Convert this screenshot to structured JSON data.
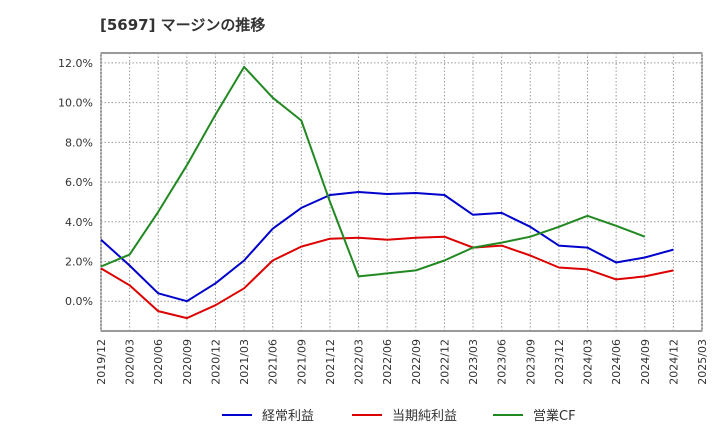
{
  "title": "[5697]  マージンの推移",
  "chart_data": {
    "type": "line",
    "x": [
      "2019/12",
      "2020/03",
      "2020/06",
      "2020/09",
      "2020/12",
      "2021/03",
      "2021/06",
      "2021/09",
      "2021/12",
      "2022/03",
      "2022/06",
      "2022/09",
      "2022/12",
      "2023/03",
      "2023/06",
      "2023/09",
      "2023/12",
      "2024/03",
      "2024/06",
      "2024/09",
      "2024/12",
      "2025/03"
    ],
    "ylim": [
      -1.5,
      12.5
    ],
    "yticks": [
      0,
      2,
      4,
      6,
      8,
      10,
      12
    ],
    "ytick_labels": [
      "0.0%",
      "2.0%",
      "4.0%",
      "6.0%",
      "8.0%",
      "10.0%",
      "12.0%"
    ],
    "grid": true,
    "legend_position": "bottom",
    "series": [
      {
        "name": "経常利益",
        "color": "#0000cc",
        "values": [
          3.1,
          1.8,
          0.4,
          0.0,
          0.9,
          2.05,
          3.65,
          4.7,
          5.35,
          5.5,
          5.4,
          5.45,
          5.35,
          4.35,
          4.45,
          3.75,
          2.8,
          2.7,
          1.95,
          2.2,
          2.6,
          null
        ]
      },
      {
        "name": "当期純利益",
        "color": "#dd0000",
        "values": [
          1.65,
          0.8,
          -0.5,
          -0.85,
          -0.2,
          0.65,
          2.05,
          2.75,
          3.15,
          3.2,
          3.1,
          3.2,
          3.25,
          2.7,
          2.8,
          2.3,
          1.7,
          1.6,
          1.1,
          1.25,
          1.55,
          null
        ]
      },
      {
        "name": "営業CF",
        "color": "#228822",
        "values": [
          1.75,
          2.35,
          4.5,
          6.85,
          9.4,
          11.8,
          10.25,
          9.1,
          5.0,
          1.25,
          1.4,
          1.55,
          2.05,
          2.7,
          2.95,
          3.25,
          3.75,
          4.3,
          3.8,
          3.25,
          null,
          null
        ]
      }
    ]
  }
}
